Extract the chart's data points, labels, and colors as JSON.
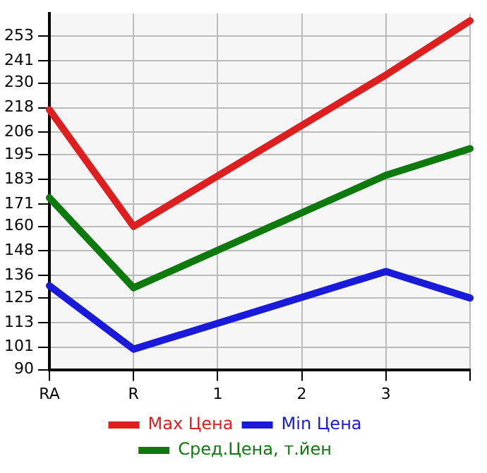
{
  "chart_data": {
    "type": "line",
    "categories": [
      "RA",
      "R",
      "1",
      "2",
      "3",
      null
    ],
    "series": [
      {
        "name": "Max Цена",
        "color": "#dd1f1f",
        "values": [
          217,
          160,
          null,
          null,
          234,
          260.5
        ]
      },
      {
        "name": "Min Цена",
        "color": "#1a1adb",
        "values": [
          131,
          100,
          null,
          null,
          138,
          125
        ]
      },
      {
        "name": "Сред.Цена, т.йен",
        "color": "#0e7a0e",
        "values": [
          174,
          130,
          null,
          null,
          185,
          198
        ]
      }
    ],
    "ylim": [
      90,
      264
    ],
    "yticks": [
      90,
      101,
      113,
      125,
      136,
      148,
      160,
      171,
      183,
      195,
      206,
      218,
      230,
      241,
      253
    ],
    "grid": true,
    "legend": "bottom",
    "marker": "none",
    "line_style": "solid"
  }
}
